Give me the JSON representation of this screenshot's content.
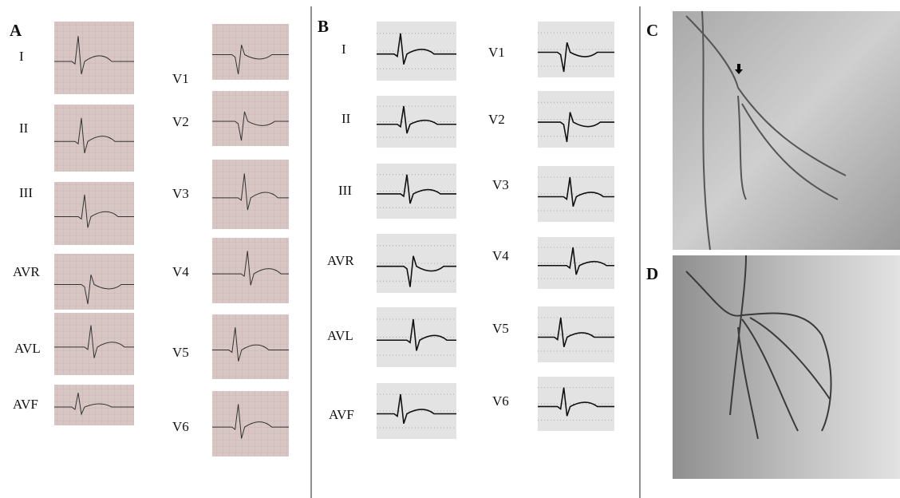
{
  "panels": [
    {
      "label": "A",
      "leads": [
        "I",
        "II",
        "III",
        "AVR",
        "AVL",
        "AVF",
        "V1",
        "V2",
        "V3",
        "V4",
        "V5",
        "V6"
      ]
    },
    {
      "label": "B",
      "leads": [
        "I",
        "II",
        "III",
        "AVR",
        "AVL",
        "AVF",
        "V1",
        "V2",
        "V3",
        "V4",
        "V5",
        "V6"
      ]
    },
    {
      "label": "C"
    },
    {
      "label": "D"
    }
  ]
}
